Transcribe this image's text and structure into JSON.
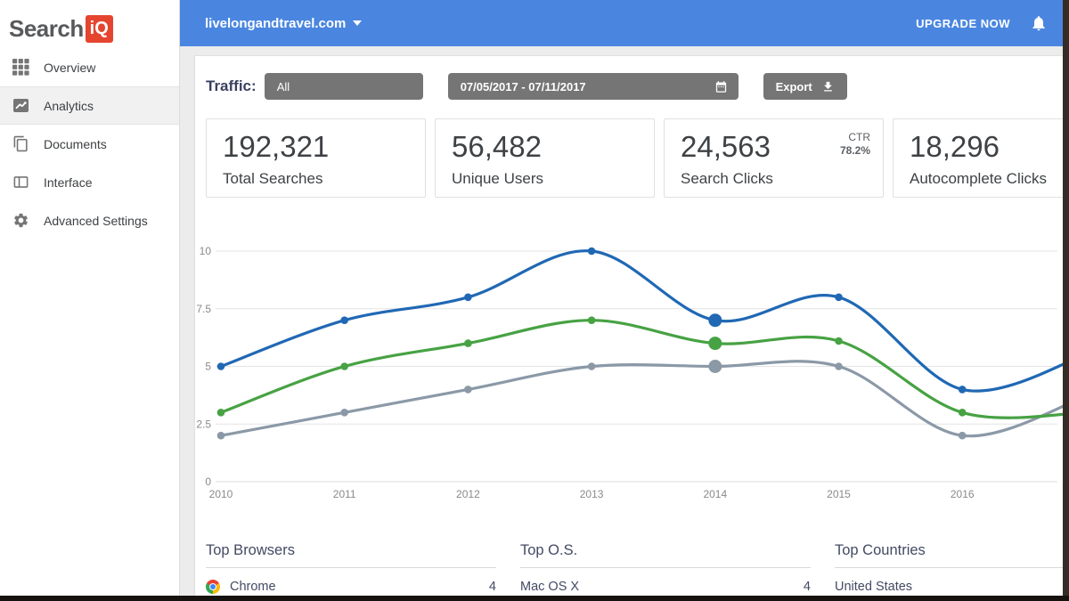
{
  "topbar": {
    "site": "livelongandtravel.com",
    "upgrade_label": "UPGRADE NOW"
  },
  "logo": {
    "part1": "Search",
    "part2": "iQ"
  },
  "sidebar": {
    "items": [
      {
        "label": "Overview",
        "icon": "grid-icon",
        "selected": false
      },
      {
        "label": "Analytics",
        "icon": "analytics-icon",
        "selected": true
      },
      {
        "label": "Documents",
        "icon": "documents-icon",
        "selected": false
      },
      {
        "label": "Interface",
        "icon": "interface-icon",
        "selected": false
      },
      {
        "label": "Advanced Settings",
        "icon": "gear-icon",
        "selected": false
      }
    ]
  },
  "filters": {
    "label": "Traffic:",
    "traffic_value": "All",
    "date_range": "07/05/2017 - 07/11/2017",
    "export_label": "Export"
  },
  "stats": [
    {
      "value": "192,321",
      "label": "Total Searches"
    },
    {
      "value": "56,482",
      "label": "Unique Users"
    },
    {
      "value": "24,563",
      "label": "Search Clicks",
      "badge_top": "CTR",
      "badge_value": "78.2%"
    },
    {
      "value": "18,296",
      "label": "Autocomplete Clicks"
    }
  ],
  "chart_data": {
    "type": "line",
    "categories": [
      "2010",
      "2011",
      "2012",
      "2013",
      "2014",
      "2015",
      "2016"
    ],
    "series": [
      {
        "name": "blue-series",
        "color": "#2068b4",
        "values": [
          5,
          7,
          8,
          10,
          7,
          8,
          4
        ],
        "offscreen_next": 5.5
      },
      {
        "name": "green-series",
        "color": "#47a244",
        "values": [
          3,
          5,
          6,
          7,
          6,
          6.1,
          3
        ],
        "offscreen_next": 3
      },
      {
        "name": "gray-series",
        "color": "#8b99a7",
        "values": [
          2,
          3,
          4,
          5,
          5,
          5,
          2
        ],
        "offscreen_next": 3.7
      }
    ],
    "highlight_index": 4,
    "yticks": [
      0,
      2.5,
      5,
      7.5,
      10
    ],
    "ylim": [
      0,
      10
    ],
    "xlabel": "",
    "ylabel": "",
    "grid": "horizontal",
    "legend": "none"
  },
  "lists": [
    {
      "title": "Top Browsers",
      "rows": [
        {
          "icon": "chrome-icon",
          "label": "Chrome",
          "value": "4"
        }
      ]
    },
    {
      "title": "Top O.S.",
      "rows": [
        {
          "icon": "",
          "label": "Mac OS X",
          "value": "4"
        }
      ]
    },
    {
      "title": "Top Countries",
      "rows": [
        {
          "icon": "",
          "label": "United States",
          "value": ""
        }
      ]
    }
  ],
  "colors": {
    "topbar": "#4a86e0",
    "logo_red": "#e5452f",
    "control_gray": "#757575",
    "chart_blue": "#2068b4",
    "chart_green": "#47a244",
    "chart_gray": "#8b99a7"
  }
}
